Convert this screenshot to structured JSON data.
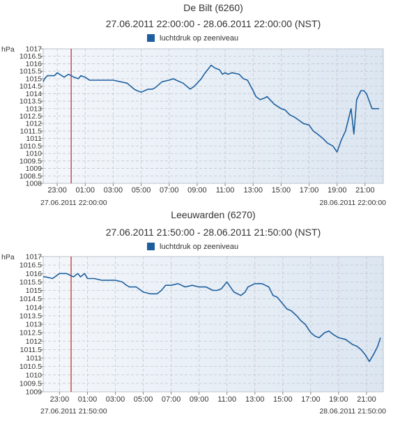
{
  "colors": {
    "series": "#1d5f9e",
    "marker": "#c41f1f",
    "plot_bg": "#e9f0f7",
    "axis": "#888888",
    "grid": "#bfc7d0"
  },
  "chart_data": [
    {
      "type": "line",
      "title": "De Bilt (6260)",
      "subtitle": "27.06.2011 22:00:00 - 28.06.2011 22:00:00 (NST)",
      "legend": "luchtdruk op zeeniveau",
      "legend_position": "top-center",
      "ylabel": "hPa",
      "ylim": [
        1008,
        1017
      ],
      "yticks": [
        "1008",
        "1008.5",
        "1009",
        "1009.5",
        "1010",
        "1010.5",
        "1011",
        "1011.5",
        "1012",
        "1012.5",
        "1013",
        "1013.5",
        "1014",
        "1014.5",
        "1015",
        "1015.5",
        "1016",
        "1016.5",
        "1017"
      ],
      "xlim_hours": [
        22,
        46.3
      ],
      "xticks": [
        "23:00",
        "01:00",
        "03:00",
        "05:00",
        "07:00",
        "09:00",
        "11:00",
        "13:00",
        "15:00",
        "17:00",
        "19:00",
        "21:00"
      ],
      "start_label": "27.06.2011 22:00:00",
      "end_label": "28.06.2011 22:00:00",
      "marker_hours": 24.0,
      "grid": true,
      "series": [
        {
          "name": "luchtdruk op zeeniveau",
          "x": [
            22.0,
            22.1,
            22.3,
            22.8,
            23.0,
            23.5,
            23.8,
            24.0,
            24.2,
            24.5,
            24.7,
            25.0,
            25.3,
            25.5,
            26.0,
            27.0,
            28.0,
            28.5,
            28.7,
            29.0,
            29.5,
            29.8,
            30.0,
            30.5,
            31.0,
            31.3,
            31.5,
            32.0,
            32.5,
            32.8,
            33.0,
            33.3,
            33.5,
            34.0,
            34.3,
            34.6,
            34.8,
            35.0,
            35.2,
            35.5,
            36.0,
            36.3,
            36.6,
            37.0,
            37.2,
            37.5,
            37.8,
            38.0,
            38.5,
            39.0,
            39.3,
            39.6,
            40.0,
            40.3,
            40.6,
            41.0,
            41.3,
            41.6,
            42.0,
            42.3,
            42.7,
            43.0,
            43.3,
            43.6,
            44.0,
            44.2,
            44.4,
            44.7,
            44.9,
            45.1,
            45.3,
            45.5,
            45.8,
            46.0
          ],
          "y": [
            1014.8,
            1015.0,
            1015.2,
            1015.2,
            1015.4,
            1015.1,
            1015.3,
            1015.2,
            1015.1,
            1015.0,
            1015.2,
            1015.1,
            1014.9,
            1014.9,
            1014.9,
            1014.9,
            1014.7,
            1014.3,
            1014.2,
            1014.1,
            1014.3,
            1014.3,
            1014.4,
            1014.8,
            1014.9,
            1015.0,
            1014.9,
            1014.7,
            1014.3,
            1014.5,
            1014.7,
            1015.0,
            1015.3,
            1015.9,
            1015.7,
            1015.6,
            1015.3,
            1015.4,
            1015.3,
            1015.4,
            1015.3,
            1015.0,
            1014.9,
            1014.2,
            1013.8,
            1013.6,
            1013.7,
            1013.8,
            1013.3,
            1013.0,
            1012.9,
            1012.6,
            1012.4,
            1012.2,
            1012.0,
            1011.9,
            1011.5,
            1011.3,
            1011.0,
            1010.7,
            1010.5,
            1010.1,
            1010.9,
            1011.5,
            1013.0,
            1011.3,
            1013.6,
            1014.2,
            1014.2,
            1014.0,
            1013.5,
            1013.0,
            1013.0,
            1013.0
          ]
        }
      ]
    },
    {
      "type": "line",
      "title": "Leeuwarden (6270)",
      "subtitle": "27.06.2011 21:50:00 - 28.06.2011 21:50:00 (NST)",
      "legend": "luchtdruk op zeeniveau",
      "legend_position": "top-center",
      "ylabel": "hPa",
      "ylim": [
        1009,
        1017
      ],
      "yticks": [
        "1009",
        "1009.5",
        "1010",
        "1010.5",
        "1011",
        "1011.5",
        "1012",
        "1012.5",
        "1013",
        "1013.5",
        "1014",
        "1014.5",
        "1015",
        "1015.5",
        "1016",
        "1016.5",
        "1017"
      ],
      "xlim_hours": [
        21.83,
        46.2
      ],
      "xticks": [
        "23:00",
        "01:00",
        "03:00",
        "05:00",
        "07:00",
        "09:00",
        "11:00",
        "13:00",
        "15:00",
        "17:00",
        "19:00",
        "21:00"
      ],
      "start_label": "27.06.2011 21:50:00",
      "end_label": "28.06.2011 21:50:00",
      "marker_hours": 23.83,
      "grid": true,
      "series": [
        {
          "name": "luchtdruk op zeeniveau",
          "x": [
            21.83,
            22.0,
            22.5,
            23.0,
            23.5,
            24.0,
            24.3,
            24.5,
            24.8,
            25.0,
            25.5,
            26.0,
            27.0,
            27.5,
            27.8,
            28.0,
            28.5,
            29.0,
            29.5,
            30.0,
            30.3,
            30.6,
            31.0,
            31.5,
            32.0,
            32.5,
            33.0,
            33.5,
            34.0,
            34.3,
            34.6,
            35.0,
            35.5,
            36.0,
            36.3,
            36.5,
            37.0,
            37.5,
            38.0,
            38.3,
            38.6,
            39.0,
            39.3,
            39.6,
            40.0,
            40.3,
            40.6,
            41.0,
            41.3,
            41.6,
            42.0,
            42.3,
            42.6,
            43.0,
            43.5,
            44.0,
            44.3,
            44.6,
            44.9,
            45.2,
            45.5,
            45.8,
            46.0
          ],
          "y": [
            1015.8,
            1015.8,
            1015.7,
            1016.0,
            1016.0,
            1015.8,
            1016.0,
            1015.8,
            1016.0,
            1015.7,
            1015.7,
            1015.6,
            1015.6,
            1015.5,
            1015.3,
            1015.2,
            1015.2,
            1014.9,
            1014.8,
            1014.8,
            1015.0,
            1015.3,
            1015.3,
            1015.4,
            1015.2,
            1015.3,
            1015.2,
            1015.2,
            1015.0,
            1015.0,
            1015.1,
            1015.5,
            1014.9,
            1014.7,
            1014.9,
            1015.2,
            1015.4,
            1015.4,
            1015.2,
            1014.7,
            1014.6,
            1014.2,
            1013.9,
            1013.8,
            1013.5,
            1013.2,
            1013.0,
            1012.5,
            1012.3,
            1012.2,
            1012.5,
            1012.6,
            1012.4,
            1012.2,
            1012.1,
            1011.8,
            1011.7,
            1011.5,
            1011.2,
            1010.8,
            1011.2,
            1011.7,
            1012.2
          ]
        }
      ]
    }
  ]
}
